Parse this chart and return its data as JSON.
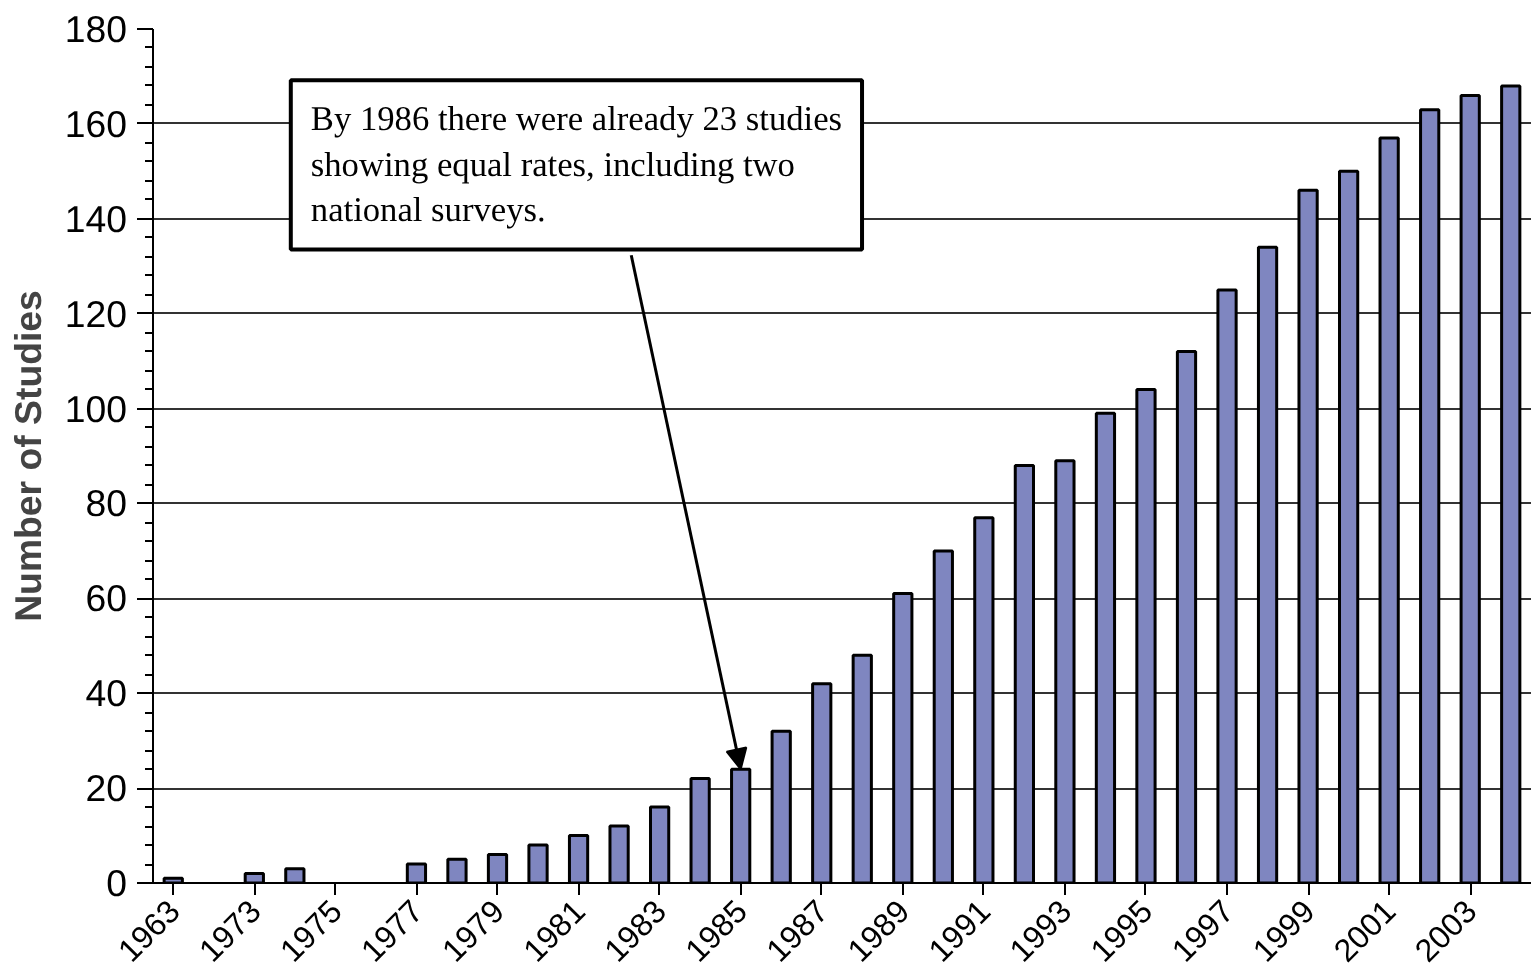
{
  "chart_data": {
    "type": "bar",
    "ylabel": "Number of Studies",
    "categories": [
      "1963",
      null,
      "1973",
      null,
      "1975",
      null,
      "1977",
      null,
      "1979",
      null,
      "1981",
      null,
      "1983",
      null,
      "1985",
      null,
      "1987",
      null,
      "1989",
      null,
      "1991",
      null,
      "1993",
      null,
      "1995",
      null,
      "1997",
      null,
      "1999",
      null,
      "2001",
      null,
      "2003",
      null
    ],
    "values": [
      1,
      0,
      2,
      3,
      0,
      0,
      4,
      5,
      6,
      8,
      10,
      12,
      16,
      22,
      24,
      32,
      42,
      48,
      61,
      70,
      77,
      88,
      89,
      99,
      104,
      112,
      125,
      134,
      146,
      150,
      157,
      163,
      166,
      168
    ],
    "color": "#7f86c0",
    "ylim": [
      0,
      180
    ],
    "yticks": [
      0,
      20,
      40,
      60,
      80,
      100,
      120,
      140,
      160,
      180
    ],
    "grid": "y",
    "annotations": [
      {
        "text": "By 1986 there were already 23 studies showing equal rates, including two national surveys.",
        "x": "1985",
        "y": 24
      }
    ]
  }
}
